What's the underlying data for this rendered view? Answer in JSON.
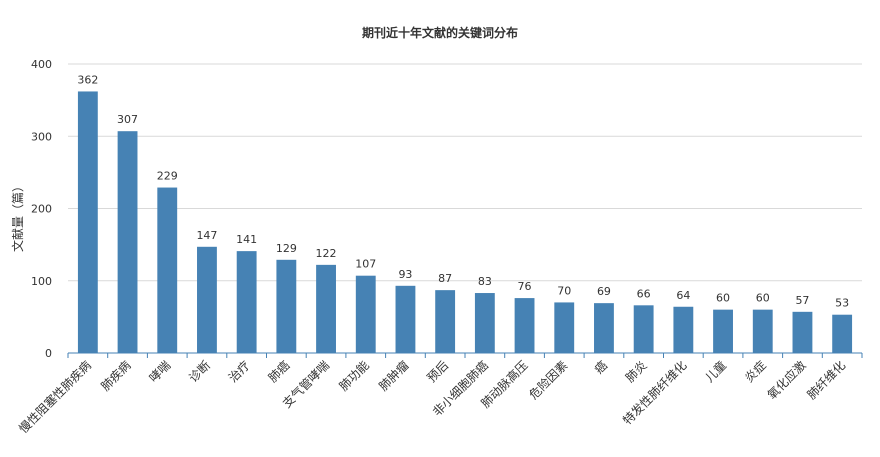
{
  "chart_data": {
    "type": "bar",
    "title": "期刊近十年文献的关键词分布",
    "ylabel": "文献量（篇）",
    "xlabel": "",
    "ylim": [
      0,
      400
    ],
    "yticks": [
      0,
      100,
      200,
      300,
      400
    ],
    "grid": true,
    "bar_color": "#4682b4",
    "categories": [
      "慢性阻塞性肺疾病",
      "肺疾病",
      "哮喘",
      "诊断",
      "治疗",
      "肺癌",
      "支气管哮喘",
      "肺功能",
      "肺肿瘤",
      "预后",
      "非小细胞肺癌",
      "肺动脉高压",
      "危险因素",
      "癌",
      "肺炎",
      "特发性肺纤维化",
      "儿童",
      "炎症",
      "氧化应激",
      "肺纤维化"
    ],
    "values": [
      362,
      307,
      229,
      147,
      141,
      129,
      122,
      107,
      93,
      87,
      83,
      76,
      70,
      69,
      66,
      64,
      60,
      60,
      57,
      53
    ]
  }
}
